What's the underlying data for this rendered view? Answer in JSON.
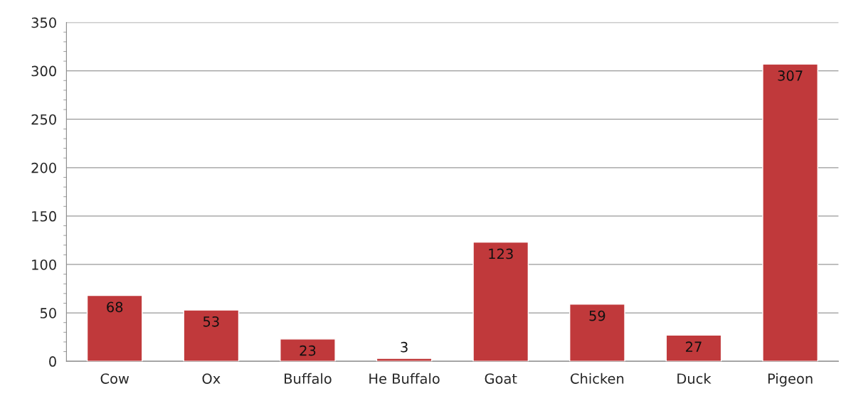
{
  "chart_data": {
    "type": "bar",
    "categories": [
      "Cow",
      "Ox",
      "Buffalo",
      "He Buffalo",
      "Goat",
      "Chicken",
      "Duck",
      "Pigeon"
    ],
    "values": [
      68,
      53,
      23,
      3,
      123,
      59,
      27,
      307
    ],
    "color": "#c0393b",
    "ylim": [
      0,
      350
    ],
    "yticks": [
      0,
      50,
      100,
      150,
      200,
      250,
      300,
      350
    ],
    "grid": "y",
    "data_labels": true
  }
}
